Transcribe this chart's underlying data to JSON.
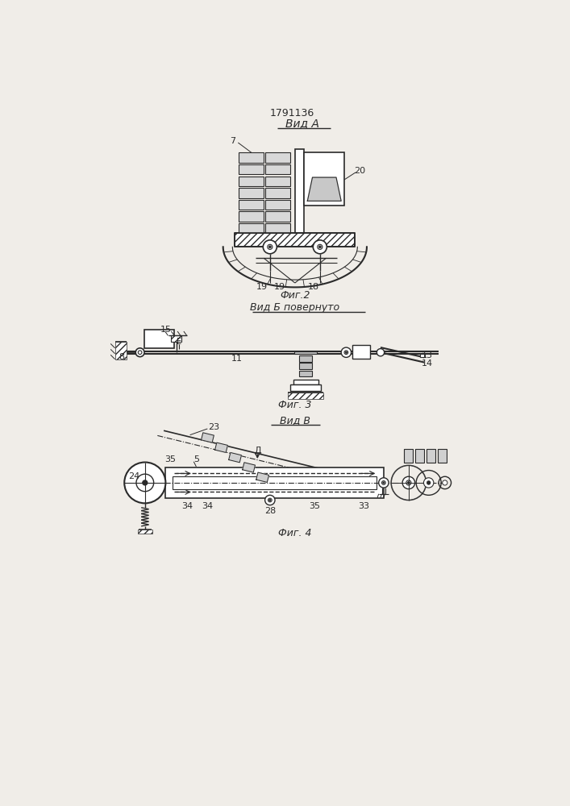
{
  "title": "1791136",
  "bg_color": "#f0ede8",
  "line_color": "#2a2a2a",
  "fig2_label": "Вид А",
  "fig3_label": "Вид Б повернуто",
  "fig4_label": "Вид В",
  "fig2_caption": "Фиг.2",
  "fig3_caption": "Фиг. 3",
  "fig4_caption": "Фиг. 4"
}
